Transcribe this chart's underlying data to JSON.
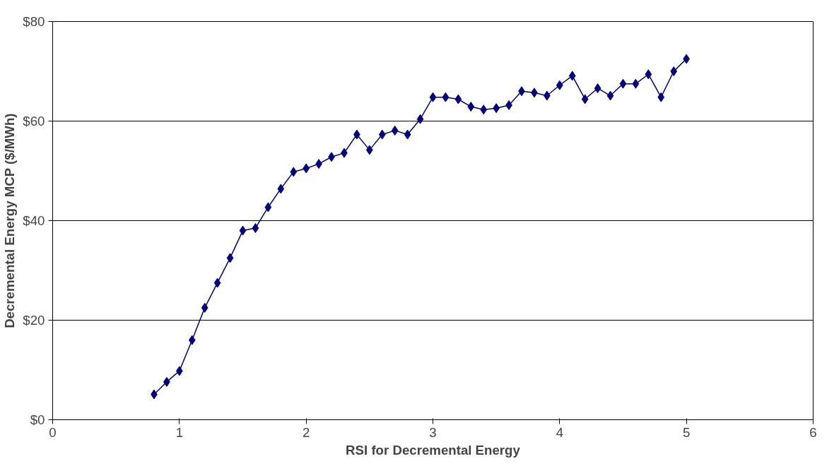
{
  "chart_data": {
    "type": "line",
    "xlabel": "RSI for Decremental Energy",
    "ylabel": "Decremental Energy MCP ($/MWh)",
    "x": [
      0.8,
      0.9,
      1.0,
      1.1,
      1.2,
      1.3,
      1.4,
      1.5,
      1.6,
      1.7,
      1.8,
      1.9,
      2.0,
      2.1,
      2.2,
      2.3,
      2.4,
      2.5,
      2.6,
      2.7,
      2.8,
      2.9,
      3.0,
      3.1,
      3.2,
      3.3,
      3.4,
      3.5,
      3.6,
      3.7,
      3.8,
      3.9,
      4.0,
      4.1,
      4.2,
      4.3,
      4.4,
      4.5,
      4.6,
      4.7,
      4.8,
      4.9,
      5.0
    ],
    "series": [
      {
        "color": "#000080",
        "values": [
          5.1,
          7.6,
          9.8,
          16,
          22.5,
          27.5,
          32.5,
          38,
          38.5,
          42.7,
          46.4,
          49.8,
          50.5,
          51.4,
          52.8,
          53.6,
          57.3,
          54.2,
          57.3,
          58.1,
          57.3,
          60.4,
          64.8,
          64.8,
          64.4,
          62.9,
          62.3,
          62.6,
          63.2,
          66,
          65.7,
          65.1,
          67.2,
          69.1,
          64.4,
          66.6,
          65.1,
          67.5,
          67.5,
          69.4,
          64.8,
          70,
          72.5
        ]
      }
    ],
    "xlim": [
      0,
      6
    ],
    "xticks": [
      0,
      1,
      2,
      3,
      4,
      5,
      6
    ],
    "ylim": [
      0,
      80
    ],
    "yticks": [
      {
        "value": 0,
        "label": "$0"
      },
      {
        "value": 20,
        "label": "$20"
      },
      {
        "value": 40,
        "label": "$40"
      },
      {
        "value": 60,
        "label": "$60"
      },
      {
        "value": 80,
        "label": "$80"
      }
    ],
    "grid": "y",
    "marker": "diamond",
    "line_style": "solid"
  }
}
